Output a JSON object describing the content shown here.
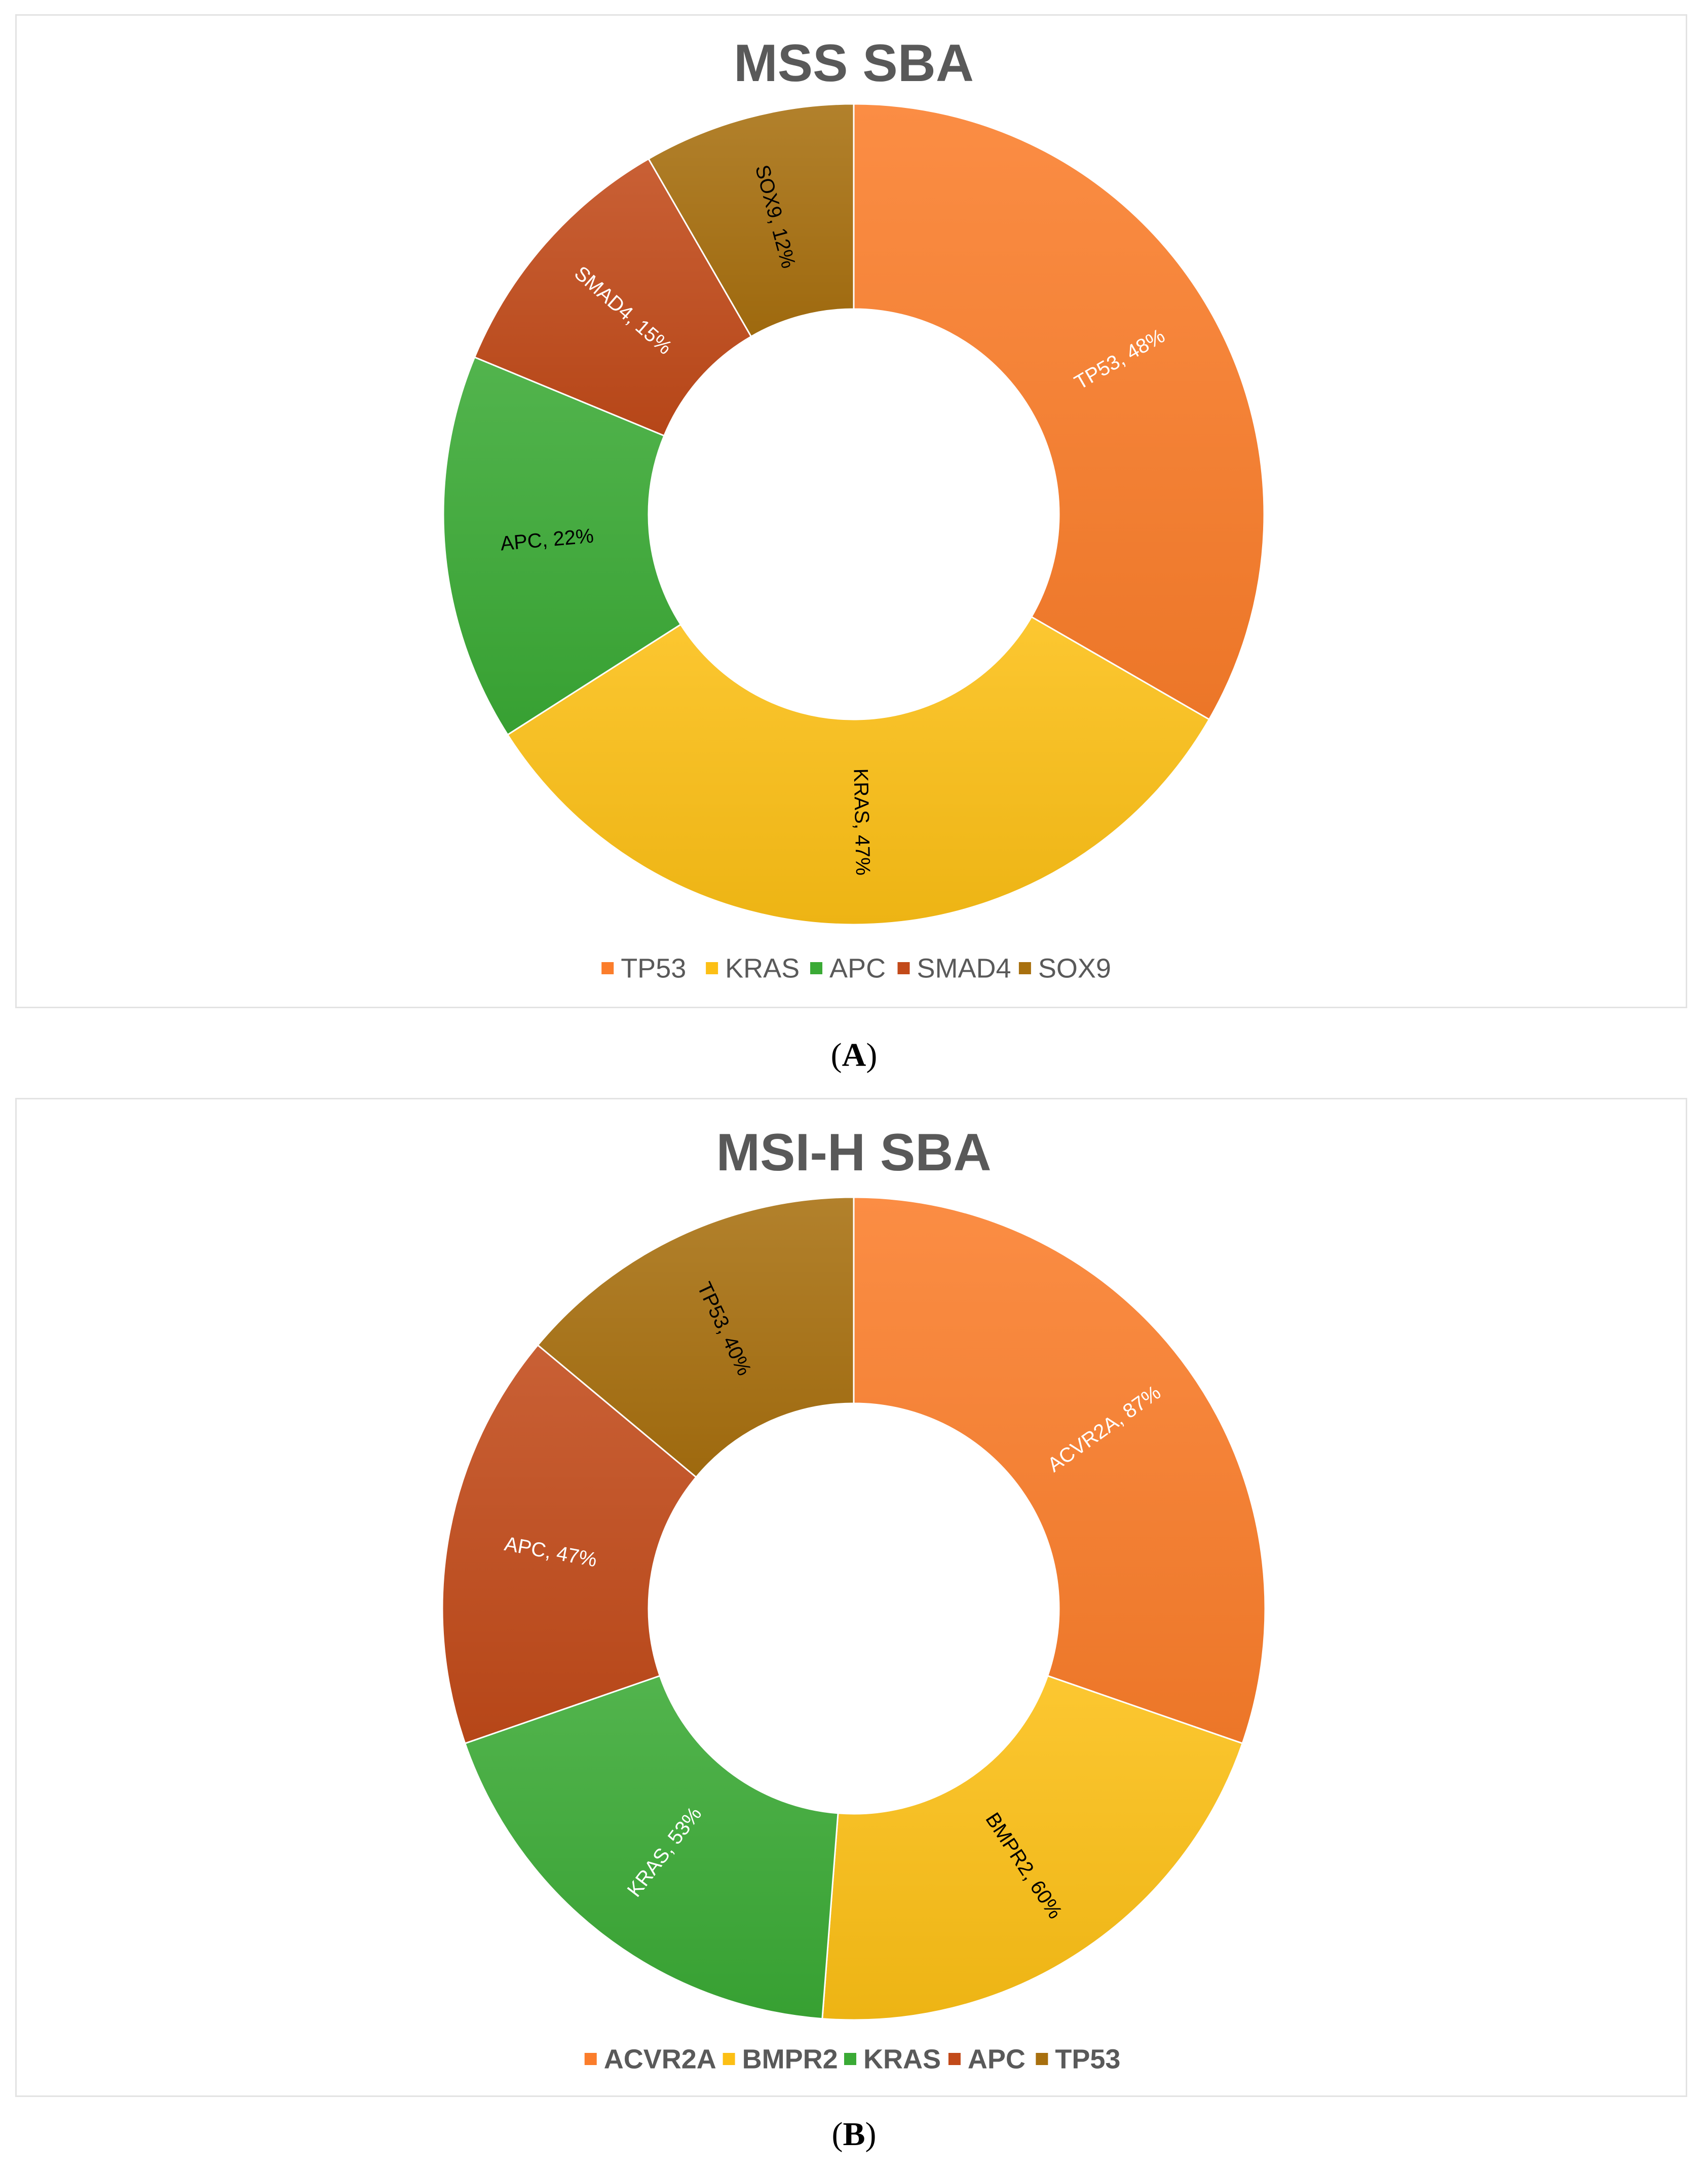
{
  "chart_data": [
    {
      "type": "donut",
      "title": "MSS SBA",
      "categories": [
        "TP53",
        "KRAS",
        "APC",
        "SMAD4",
        "SOX9"
      ],
      "values": [
        48,
        47,
        22,
        15,
        12
      ],
      "data_labels": [
        "TP53, 48%",
        "KRAS, 47%",
        "APC, 22%",
        "SMAD4, 15%",
        "SOX9, 12%"
      ],
      "colors": [
        "#fb7d2b",
        "#fcbf15",
        "#3aaa35",
        "#c24a1a",
        "#a8700f"
      ],
      "label_colors": [
        "#ffffff",
        "#000000",
        "#000000",
        "#ffffff",
        "#000000"
      ],
      "legend_position": "bottom",
      "caption_letter": "A"
    },
    {
      "type": "donut",
      "title": "MSI-H SBA",
      "categories": [
        "ACVR2A",
        "BMPR2",
        "KRAS",
        "APC",
        "TP53"
      ],
      "values": [
        87,
        60,
        53,
        47,
        40
      ],
      "data_labels": [
        "ACVR2A, 87%",
        "BMPR2, 60%",
        "KRAS, 53%",
        "APC, 47%",
        "TP53, 40%"
      ],
      "colors": [
        "#fb7d2b",
        "#fcbf15",
        "#3aaa35",
        "#c24a1a",
        "#a8700f"
      ],
      "label_colors": [
        "#ffffff",
        "#000000",
        "#ffffff",
        "#ffffff",
        "#000000"
      ],
      "legend_position": "bottom",
      "caption_letter": "B"
    }
  ],
  "captions": [
    {
      "open": "(",
      "letter": "A",
      "close": ")"
    },
    {
      "open": "(",
      "letter": "B",
      "close": ")"
    }
  ]
}
